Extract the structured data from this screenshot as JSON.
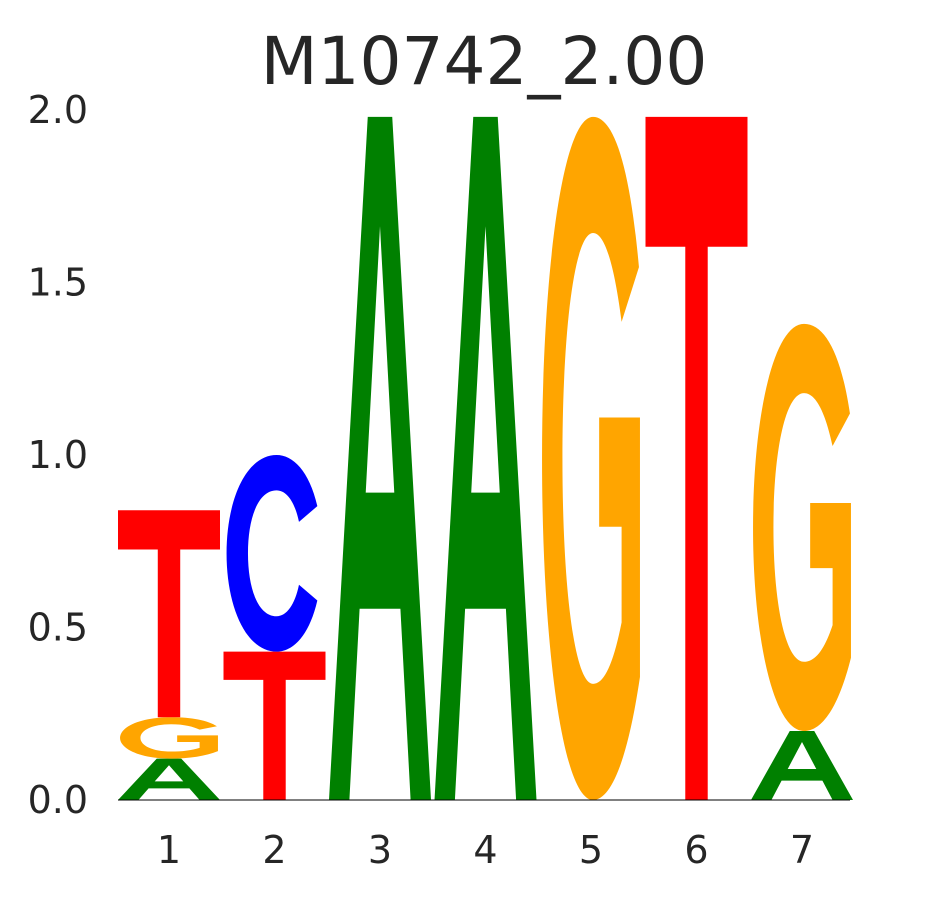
{
  "chart_data": {
    "type": "sequence-logo",
    "title": "M10742_2.00",
    "xlabel": "",
    "ylabel": "",
    "ylim": [
      0,
      2.0
    ],
    "yticks": [
      "0.0",
      "0.5",
      "1.0",
      "1.5",
      "2.0"
    ],
    "positions": [
      "1",
      "2",
      "3",
      "4",
      "5",
      "6",
      "7"
    ],
    "colors": {
      "A": "#008000",
      "C": "#0000ff",
      "G": "#ffa500",
      "T": "#ff0000"
    },
    "stacks": [
      [
        {
          "base": "A",
          "height": 0.12
        },
        {
          "base": "G",
          "height": 0.12
        },
        {
          "base": "T",
          "height": 0.6
        }
      ],
      [
        {
          "base": "T",
          "height": 0.43
        },
        {
          "base": "C",
          "height": 0.57
        }
      ],
      [
        {
          "base": "A",
          "height": 1.98
        }
      ],
      [
        {
          "base": "A",
          "height": 1.98
        }
      ],
      [
        {
          "base": "G",
          "height": 1.98
        }
      ],
      [
        {
          "base": "T",
          "height": 1.98
        }
      ],
      [
        {
          "base": "A",
          "height": 0.2
        },
        {
          "base": "G",
          "height": 1.18
        }
      ]
    ]
  }
}
